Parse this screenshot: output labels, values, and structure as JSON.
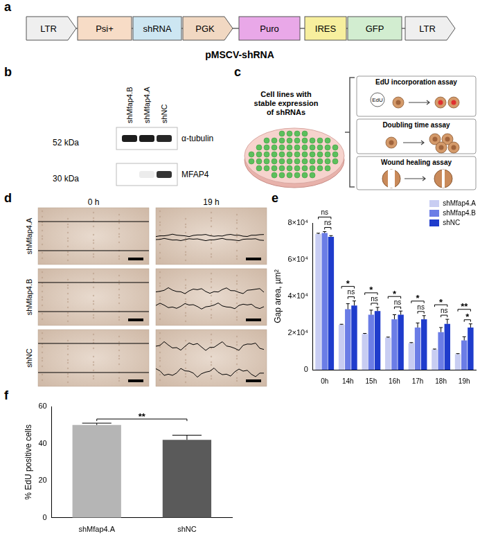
{
  "panel_labels": [
    "a",
    "b",
    "c",
    "d",
    "e",
    "f"
  ],
  "plasmid": {
    "name": "pMSCV-shRNA",
    "elements": [
      {
        "label": "LTR",
        "color": "#efefef",
        "shape": "arrow"
      },
      {
        "label": "Psi+",
        "color": "#f7dcc6",
        "shape": "box"
      },
      {
        "label": "shRNA",
        "color": "#cde6f2",
        "shape": "box"
      },
      {
        "label": "PGK",
        "color": "#f1d8c2",
        "shape": "arrow"
      },
      {
        "label": "Puro",
        "color": "#e9a8e8",
        "shape": "box"
      },
      {
        "label": "IRES",
        "color": "#f7ef9e",
        "shape": "box"
      },
      {
        "label": "GFP",
        "color": "#d2edd0",
        "shape": "box"
      },
      {
        "label": "LTR",
        "color": "#efefef",
        "shape": "arrow"
      }
    ]
  },
  "blot": {
    "lanes": [
      "shMfap4.B",
      "shMfap4.A",
      "shNC"
    ],
    "rows": [
      {
        "protein": "α-tubulin",
        "size": "52 kDa",
        "intensity": [
          0.95,
          0.95,
          0.9
        ]
      },
      {
        "protein": "MFAP4",
        "size": "30 kDa",
        "intensity": [
          0,
          0.08,
          0.85
        ]
      }
    ]
  },
  "schematic": {
    "source": "Cell lines with stable expression of shRNAs",
    "tag": "EdU",
    "assays": [
      "EdU incorporation assay",
      "Doubling time assay",
      "Wound healing assay"
    ]
  },
  "wound_images": {
    "times": [
      "0 h",
      "19 h"
    ],
    "rows": [
      "shMfap4.A",
      "shMfap4.B",
      "shNC"
    ]
  },
  "chart_data": [
    {
      "type": "bar",
      "y_label": "Gap area, µm²",
      "categories": [
        "0h",
        "14h",
        "15h",
        "16h",
        "17h",
        "18h",
        "19h"
      ],
      "series": [
        {
          "name": "shMfap4.A",
          "color": "#c8cdf2",
          "values": [
            74000,
            24500,
            19500,
            17500,
            14500,
            11000,
            8500
          ],
          "errors": [
            400,
            300,
            300,
            300,
            300,
            300,
            300
          ]
        },
        {
          "name": "shMfap4.B",
          "color": "#6b7de6",
          "values": [
            74500,
            33000,
            30000,
            27500,
            23000,
            20500,
            16000
          ],
          "errors": [
            800,
            3000,
            2500,
            2500,
            2500,
            2500,
            2000
          ]
        },
        {
          "name": "shNC",
          "color": "#1f3ccc",
          "values": [
            72500,
            35000,
            32000,
            30000,
            27500,
            25000,
            23000
          ],
          "errors": [
            600,
            2500,
            2000,
            2000,
            2000,
            2500,
            2000
          ]
        }
      ],
      "ylim": [
        0,
        80000
      ],
      "yticks": [
        0,
        {
          "value": 20000,
          "label": "2×10⁴"
        },
        {
          "value": 40000,
          "label": "4×10⁴"
        },
        {
          "value": 60000,
          "label": "6×10⁴"
        },
        {
          "value": 80000,
          "label": "8×10⁴"
        }
      ],
      "grid": false,
      "legend": "top-right",
      "annotations": [
        {
          "category": "0h",
          "from": "shMfap4.A",
          "to": "shNC",
          "text": "ns"
        },
        {
          "category": "0h",
          "from": "shMfap4.B",
          "to": "shNC",
          "text": "ns"
        },
        {
          "category": "14h",
          "from": "shMfap4.A",
          "to": "shNC",
          "text": "*"
        },
        {
          "category": "14h",
          "from": "shMfap4.B",
          "to": "shNC",
          "text": "ns"
        },
        {
          "category": "15h",
          "from": "shMfap4.A",
          "to": "shNC",
          "text": "*"
        },
        {
          "category": "15h",
          "from": "shMfap4.B",
          "to": "shNC",
          "text": "ns"
        },
        {
          "category": "16h",
          "from": "shMfap4.A",
          "to": "shNC",
          "text": "*"
        },
        {
          "category": "16h",
          "from": "shMfap4.B",
          "to": "shNC",
          "text": "ns"
        },
        {
          "category": "17h",
          "from": "shMfap4.A",
          "to": "shNC",
          "text": "*"
        },
        {
          "category": "17h",
          "from": "shMfap4.B",
          "to": "shNC",
          "text": "ns"
        },
        {
          "category": "18h",
          "from": "shMfap4.A",
          "to": "shNC",
          "text": "*"
        },
        {
          "category": "18h",
          "from": "shMfap4.B",
          "to": "shNC",
          "text": "ns"
        },
        {
          "category": "19h",
          "from": "shMfap4.A",
          "to": "shNC",
          "text": "**"
        },
        {
          "category": "19h",
          "from": "shMfap4.B",
          "to": "shNC",
          "text": "*"
        }
      ]
    },
    {
      "type": "bar",
      "y_label": "% EdU positive cells",
      "categories": [
        "shMfap4.A",
        "shNC"
      ],
      "values": [
        50,
        42
      ],
      "errors": [
        1,
        2.5
      ],
      "colors": [
        "#b5b5b5",
        "#5a5a5a"
      ],
      "ylim": [
        0,
        60
      ],
      "yticks": [
        0,
        20,
        40,
        60
      ],
      "grid": false,
      "annotations": [
        {
          "from": "shMfap4.A",
          "to": "shNC",
          "text": "**"
        }
      ]
    }
  ]
}
